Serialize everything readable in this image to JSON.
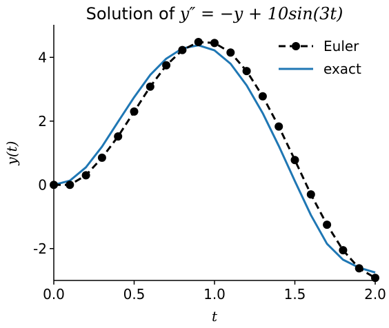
{
  "chart_data": {
    "type": "line",
    "title_prefix": "Solution of ",
    "title_equation": "y″ = −y + 10sin(3t)",
    "xlabel": "t",
    "ylabel": "y(t)",
    "xlim": [
      0,
      2
    ],
    "ylim": [
      -3,
      5
    ],
    "xticks": [
      0,
      0.5,
      1,
      1.5,
      2
    ],
    "xtick_labels": [
      "0.0",
      "0.5",
      "1.0",
      "1.5",
      "2.0"
    ],
    "yticks": [
      -2,
      0,
      2,
      4
    ],
    "ytick_labels": [
      "-2",
      "0",
      "2",
      "4"
    ],
    "grid": false,
    "legend_position": "top-right",
    "series": [
      {
        "name": "Euler",
        "style": "dashed-markers",
        "color": "#000000",
        "x": [
          0,
          0.1,
          0.2,
          0.3,
          0.4,
          0.5,
          0.6,
          0.7,
          0.8,
          0.9,
          1.0,
          1.1,
          1.2,
          1.3,
          1.4,
          1.5,
          1.6,
          1.7,
          1.8,
          1.9,
          2.0
        ],
        "y": [
          0,
          0.0,
          0.3,
          0.85,
          1.52,
          2.3,
          3.08,
          3.75,
          4.23,
          4.48,
          4.45,
          4.15,
          3.57,
          2.78,
          1.83,
          0.78,
          -0.3,
          -1.25,
          -2.05,
          -2.62,
          -2.92
        ]
      },
      {
        "name": "exact",
        "style": "solid",
        "color": "#1f77b4",
        "x": [
          0,
          0.1,
          0.2,
          0.3,
          0.4,
          0.5,
          0.6,
          0.7,
          0.8,
          0.9,
          1.0,
          1.1,
          1.2,
          1.3,
          1.4,
          1.5,
          1.6,
          1.7,
          1.8,
          1.9,
          2.0
        ],
        "y": [
          0,
          0.13,
          0.55,
          1.2,
          1.98,
          2.75,
          3.45,
          3.96,
          4.28,
          4.38,
          4.22,
          3.8,
          3.12,
          2.25,
          1.22,
          0.12,
          -0.95,
          -1.85,
          -2.35,
          -2.6,
          -2.75
        ]
      }
    ]
  }
}
